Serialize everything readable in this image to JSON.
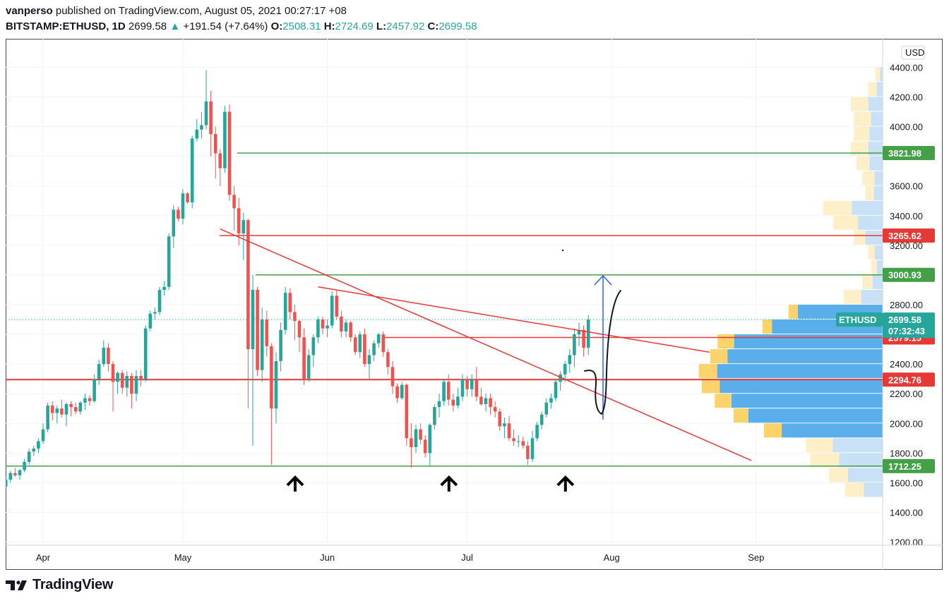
{
  "header": {
    "author": "vanperso",
    "published_text": "published on TradingView.com, August 05, 2021 00:27:17 +08",
    "symbol": "BITSTAMP:ETHUSD, 1D",
    "price": "2699.58",
    "change": "+191.54 (+7.64%)",
    "o_label": "O:",
    "o_value": "2508.31",
    "h_label": "H:",
    "h_value": "2724.69",
    "l_label": "L:",
    "l_value": "2457.92",
    "c_label": "C:",
    "c_value": "2699.58"
  },
  "footer": {
    "brand": "TradingView"
  },
  "colors": {
    "up": "#26a69a",
    "down": "#ef5350",
    "red_line": "#e53935",
    "green_line": "#43a047",
    "blue_arrow": "#2962ff"
  },
  "chart_data": {
    "type": "candlestick",
    "currency": "USD",
    "ylim": [
      1200,
      4500
    ],
    "y_ticks": [
      "4400.00",
      "4200.00",
      "4000.00",
      "3800.00",
      "3600.00",
      "3400.00",
      "3200.00",
      "3000.00",
      "2800.00",
      "2600.00",
      "2400.00",
      "2200.00",
      "2000.00",
      "1800.00",
      "1600.00",
      "1400.00",
      "1200.00"
    ],
    "x_ticks": [
      {
        "label": "Apr",
        "day": 0
      },
      {
        "label": "May",
        "day": 30
      },
      {
        "label": "Jun",
        "day": 61
      },
      {
        "label": "Jul",
        "day": 91
      },
      {
        "label": "Aug",
        "day": 122
      },
      {
        "label": "Sep",
        "day": 153
      }
    ],
    "candles_start": "Mar 24, 2021",
    "candles": [
      [
        1575,
        1640,
        1560,
        1620
      ],
      [
        1620,
        1680,
        1600,
        1665
      ],
      [
        1665,
        1700,
        1640,
        1650
      ],
      [
        1650,
        1690,
        1620,
        1685
      ],
      [
        1685,
        1760,
        1670,
        1740
      ],
      [
        1740,
        1830,
        1720,
        1810
      ],
      [
        1810,
        1850,
        1780,
        1830
      ],
      [
        1830,
        1900,
        1800,
        1880
      ],
      [
        1880,
        2000,
        1860,
        1960
      ],
      [
        1960,
        2140,
        1940,
        2120
      ],
      [
        2120,
        2150,
        2020,
        2070
      ],
      [
        2070,
        2120,
        2000,
        2100
      ],
      [
        2100,
        2160,
        2040,
        2060
      ],
      [
        2060,
        2140,
        1980,
        2130
      ],
      [
        2130,
        2150,
        2050,
        2110
      ],
      [
        2110,
        2140,
        2060,
        2080
      ],
      [
        2080,
        2150,
        2060,
        2140
      ],
      [
        2140,
        2200,
        2090,
        2170
      ],
      [
        2170,
        2190,
        2120,
        2150
      ],
      [
        2150,
        2330,
        2140,
        2300
      ],
      [
        2300,
        2430,
        2260,
        2400
      ],
      [
        2400,
        2560,
        2380,
        2510
      ],
      [
        2510,
        2540,
        2350,
        2400
      ],
      [
        2400,
        2420,
        2080,
        2280
      ],
      [
        2280,
        2350,
        2200,
        2340
      ],
      [
        2340,
        2360,
        2200,
        2240
      ],
      [
        2240,
        2350,
        2180,
        2320
      ],
      [
        2320,
        2340,
        2100,
        2200
      ],
      [
        2200,
        2360,
        2150,
        2320
      ],
      [
        2320,
        2360,
        2250,
        2300
      ],
      [
        2300,
        2660,
        2280,
        2640
      ],
      [
        2640,
        2760,
        2620,
        2740
      ],
      [
        2740,
        2780,
        2700,
        2750
      ],
      [
        2750,
        2920,
        2730,
        2900
      ],
      [
        2900,
        2960,
        2860,
        2920
      ],
      [
        2920,
        3280,
        2900,
        3260
      ],
      [
        3260,
        3470,
        3180,
        3440
      ],
      [
        3440,
        3460,
        3360,
        3380
      ],
      [
        3380,
        3580,
        3340,
        3550
      ],
      [
        3550,
        3560,
        3480,
        3490
      ],
      [
        3490,
        3940,
        3450,
        3920
      ],
      [
        3920,
        4050,
        3900,
        3980
      ],
      [
        3980,
        4100,
        3920,
        4010
      ],
      [
        4010,
        4380,
        3980,
        4170
      ],
      [
        4170,
        4240,
        3800,
        3950
      ],
      [
        3950,
        4000,
        3650,
        3820
      ],
      [
        3820,
        3850,
        3600,
        3720
      ],
      [
        3720,
        4140,
        3690,
        4100
      ],
      [
        4100,
        4150,
        3500,
        3540
      ],
      [
        3540,
        3600,
        3300,
        3450
      ],
      [
        3450,
        3520,
        3200,
        3280
      ],
      [
        3280,
        3420,
        3100,
        3370
      ],
      [
        3370,
        3380,
        2100,
        2500
      ],
      [
        2500,
        3000,
        1850,
        2900
      ],
      [
        2900,
        2920,
        2320,
        2360
      ],
      [
        2360,
        2780,
        2280,
        2700
      ],
      [
        2700,
        2760,
        2450,
        2520
      ],
      [
        2520,
        2540,
        1720,
        2100
      ],
      [
        2100,
        2480,
        2000,
        2420
      ],
      [
        2420,
        2680,
        2350,
        2630
      ],
      [
        2630,
        2920,
        2600,
        2880
      ],
      [
        2880,
        2910,
        2700,
        2750
      ],
      [
        2750,
        2800,
        2560,
        2690
      ],
      [
        2690,
        2700,
        2480,
        2580
      ],
      [
        2580,
        2640,
        2260,
        2300
      ],
      [
        2300,
        2500,
        2280,
        2460
      ],
      [
        2460,
        2600,
        2380,
        2580
      ],
      [
        2580,
        2720,
        2540,
        2700
      ],
      [
        2700,
        2720,
        2600,
        2640
      ],
      [
        2640,
        2700,
        2580,
        2660
      ],
      [
        2660,
        2890,
        2640,
        2860
      ],
      [
        2860,
        2900,
        2700,
        2720
      ],
      [
        2720,
        2760,
        2580,
        2620
      ],
      [
        2620,
        2700,
        2580,
        2680
      ],
      [
        2680,
        2690,
        2550,
        2580
      ],
      [
        2580,
        2600,
        2460,
        2480
      ],
      [
        2480,
        2620,
        2440,
        2600
      ],
      [
        2600,
        2640,
        2380,
        2400
      ],
      [
        2400,
        2500,
        2300,
        2460
      ],
      [
        2460,
        2560,
        2420,
        2540
      ],
      [
        2540,
        2610,
        2510,
        2600
      ],
      [
        2600,
        2620,
        2450,
        2480
      ],
      [
        2480,
        2500,
        2330,
        2380
      ],
      [
        2380,
        2420,
        2200,
        2250
      ],
      [
        2250,
        2270,
        2140,
        2170
      ],
      [
        2170,
        2280,
        2160,
        2260
      ],
      [
        2260,
        2270,
        1850,
        1900
      ],
      [
        1900,
        2000,
        1700,
        1840
      ],
      [
        1840,
        1990,
        1800,
        1960
      ],
      [
        1960,
        2000,
        1860,
        1890
      ],
      [
        1890,
        1920,
        1770,
        1800
      ],
      [
        1800,
        2000,
        1710,
        1990
      ],
      [
        1990,
        2130,
        1960,
        2110
      ],
      [
        2110,
        2200,
        2040,
        2150
      ],
      [
        2150,
        2300,
        2120,
        2280
      ],
      [
        2280,
        2330,
        2120,
        2160
      ],
      [
        2160,
        2200,
        2080,
        2120
      ],
      [
        2120,
        2240,
        2100,
        2180
      ],
      [
        2180,
        2330,
        2150,
        2300
      ],
      [
        2300,
        2320,
        2180,
        2230
      ],
      [
        2230,
        2330,
        2180,
        2300
      ],
      [
        2300,
        2380,
        2150,
        2180
      ],
      [
        2180,
        2240,
        2120,
        2130
      ],
      [
        2130,
        2200,
        2080,
        2170
      ],
      [
        2170,
        2200,
        2060,
        2110
      ],
      [
        2110,
        2150,
        2040,
        2080
      ],
      [
        2080,
        2100,
        1950,
        1980
      ],
      [
        1980,
        2040,
        1900,
        2000
      ],
      [
        2000,
        2050,
        1880,
        1900
      ],
      [
        1900,
        1960,
        1850,
        1880
      ],
      [
        1880,
        1920,
        1840,
        1880
      ],
      [
        1880,
        1910,
        1830,
        1850
      ],
      [
        1850,
        1880,
        1720,
        1760
      ],
      [
        1760,
        1950,
        1740,
        1900
      ],
      [
        1900,
        2010,
        1880,
        1990
      ],
      [
        1990,
        2080,
        1960,
        2060
      ],
      [
        2060,
        2170,
        2040,
        2140
      ],
      [
        2140,
        2200,
        2100,
        2170
      ],
      [
        2170,
        2290,
        2150,
        2280
      ],
      [
        2280,
        2350,
        2220,
        2330
      ],
      [
        2330,
        2420,
        2280,
        2400
      ],
      [
        2400,
        2500,
        2340,
        2460
      ],
      [
        2460,
        2640,
        2380,
        2600
      ],
      [
        2600,
        2680,
        2520,
        2630
      ],
      [
        2630,
        2660,
        2450,
        2510
      ],
      [
        2510,
        2730,
        2460,
        2700
      ]
    ],
    "horizontal_levels": [
      {
        "value": "3821.98",
        "color": "green"
      },
      {
        "value": "3265.62",
        "color": "red"
      },
      {
        "value": "3000.93",
        "color": "green"
      },
      {
        "value": "2579.15",
        "color": "red"
      },
      {
        "value": "2294.76",
        "color": "red"
      },
      {
        "value": "1712.25",
        "color": "green"
      }
    ],
    "last_price": {
      "symbol": "ETHUSD",
      "value": "2699.58",
      "countdown": "07:32:43"
    },
    "trendlines": [
      {
        "from": {
          "day": 38,
          "price": 3310
        },
        "to": {
          "day": 152,
          "price": 1750
        }
      },
      {
        "from": {
          "day": 59,
          "price": 2920
        },
        "to": {
          "day": 143,
          "price": 2480
        }
      }
    ],
    "volume_profile": [
      {
        "price": 4350,
        "vol": 5,
        "up": 0.65
      },
      {
        "price": 4250,
        "vol": 10,
        "up": 0.6
      },
      {
        "price": 4150,
        "vol": 22,
        "up": 0.55
      },
      {
        "price": 4050,
        "vol": 20,
        "up": 0.6
      },
      {
        "price": 3950,
        "vol": 20,
        "up": 0.55
      },
      {
        "price": 3850,
        "vol": 22,
        "up": 0.55
      },
      {
        "price": 3750,
        "vol": 18,
        "up": 0.5
      },
      {
        "price": 3650,
        "vol": 14,
        "up": 0.6
      },
      {
        "price": 3550,
        "vol": 12,
        "up": 0.5
      },
      {
        "price": 3450,
        "vol": 41,
        "up": 0.48
      },
      {
        "price": 3350,
        "vol": 34,
        "up": 0.5
      },
      {
        "price": 3250,
        "vol": 20,
        "up": 0.4
      },
      {
        "price": 3150,
        "vol": 10,
        "up": 0.45
      },
      {
        "price": 3050,
        "vol": 8,
        "up": 0.5
      },
      {
        "price": 2950,
        "vol": 14,
        "up": 0.5
      },
      {
        "price": 2850,
        "vol": 27,
        "up": 0.45
      },
      {
        "price": 2750,
        "vol": 65,
        "up": 0.1
      },
      {
        "price": 2650,
        "vol": 83,
        "up": 0.08
      },
      {
        "price": 2550,
        "vol": 114,
        "up": 0.1
      },
      {
        "price": 2450,
        "vol": 119,
        "up": 0.1
      },
      {
        "price": 2350,
        "vol": 127,
        "up": 0.1
      },
      {
        "price": 2250,
        "vol": 125,
        "up": 0.1
      },
      {
        "price": 2150,
        "vol": 116,
        "up": 0.1
      },
      {
        "price": 2050,
        "vol": 103,
        "up": 0.1
      },
      {
        "price": 1950,
        "vol": 82,
        "up": 0.15
      },
      {
        "price": 1850,
        "vol": 53,
        "up": 0.35
      },
      {
        "price": 1750,
        "vol": 50,
        "up": 0.4
      },
      {
        "price": 1650,
        "vol": 37,
        "up": 0.35
      },
      {
        "price": 1550,
        "vol": 26,
        "up": 0.5
      }
    ],
    "support_arrow_days": [
      55,
      88,
      113
    ]
  }
}
